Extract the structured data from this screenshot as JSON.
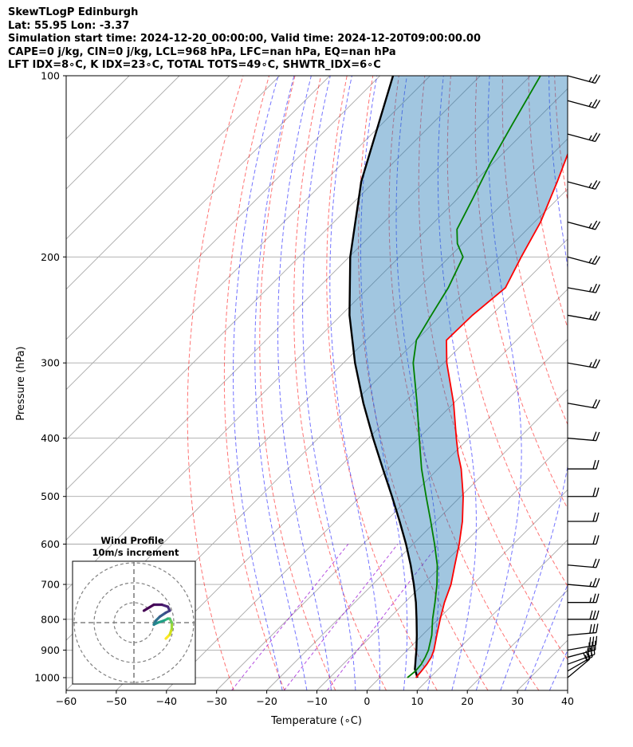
{
  "header": {
    "line1": "SkewTLogP Edinburgh",
    "line2": "Lat: 55.95   Lon: -3.37",
    "line3": "Simulation start time: 2024-12-20_00:00:00, Valid time: 2024-12-20T09:00:00.00",
    "line4": "CAPE=0 j/kg, CIN=0 j/kg, LCL=968 hPa, LFC=nan hPa, EQ=nan hPa",
    "line5": "LFT IDX=8∘C, K IDX=23∘C, TOTAL TOTS=49∘C, SHWTR_IDX=6∘C"
  },
  "chart_data": {
    "type": "line",
    "title": "SkewTLogP Edinburgh",
    "xlabel": "Temperature (∘C)",
    "ylabel": "Pressure (hPa)",
    "xlim": [
      -60,
      40
    ],
    "ylim": [
      1050,
      100
    ],
    "y_scale": "log",
    "grid": true,
    "x_ticks": [
      -60,
      -50,
      -40,
      -30,
      -20,
      -10,
      0,
      10,
      20,
      30,
      40
    ],
    "y_ticks": [
      1000,
      900,
      800,
      700,
      600,
      500,
      400,
      300,
      200,
      100
    ],
    "colors": {
      "temperature": "#ff0000",
      "dewpoint": "#008000",
      "parcel": "#000000",
      "cape_fill": "#1f77b4",
      "dry_adiabat": "#ff0000",
      "moist_adiabat": "#0000ff",
      "mixing_ratio": "#9400d3",
      "isotherm": "#808080"
    },
    "series": [
      {
        "name": "Temperature",
        "pressure": [
          1000,
          975,
          950,
          925,
          900,
          850,
          800,
          750,
          700,
          650,
          600,
          550,
          500,
          450,
          425,
          400,
          350,
          300,
          275,
          250,
          225,
          200,
          175,
          150,
          125,
          100
        ],
        "values": [
          7.2,
          7.0,
          6.7,
          6.2,
          5.3,
          2.9,
          0.4,
          -2.1,
          -4.4,
          -7.5,
          -10.8,
          -14.7,
          -19.5,
          -25.4,
          -29.0,
          -32.5,
          -40.0,
          -49.4,
          -54.0,
          -53.8,
          -52.7,
          -55.7,
          -58.8,
          -63.5,
          -69.4,
          -75.5
        ]
      },
      {
        "name": "Dewpoint",
        "pressure": [
          1000,
          975,
          950,
          925,
          900,
          850,
          800,
          750,
          700,
          650,
          600,
          550,
          500,
          450,
          400,
          350,
          300,
          275,
          250,
          225,
          200,
          190,
          180,
          160,
          140,
          120,
          100
        ],
        "values": [
          5.5,
          5.8,
          5.6,
          5.0,
          4.2,
          1.9,
          -1.1,
          -4.0,
          -7.2,
          -11.0,
          -15.7,
          -21.0,
          -26.9,
          -33.3,
          -39.9,
          -47.3,
          -56.1,
          -60.0,
          -62.0,
          -64.1,
          -67.3,
          -71.1,
          -74.0,
          -77.0,
          -80.5,
          -84.0,
          -88.0
        ]
      },
      {
        "name": "Parcel",
        "pressure": [
          1000,
          968,
          950,
          925,
          900,
          850,
          800,
          750,
          700,
          650,
          600,
          550,
          500,
          450,
          400,
          350,
          300,
          250,
          200,
          150,
          100
        ],
        "values": [
          7.5,
          5.3,
          4.4,
          3.1,
          1.8,
          -1.1,
          -4.3,
          -7.8,
          -11.8,
          -16.3,
          -21.4,
          -27.2,
          -33.7,
          -41.0,
          -49.1,
          -58.0,
          -67.7,
          -78.3,
          -89.8,
          -102.6,
          -117.4
        ]
      }
    ],
    "wind_barbs": {
      "pressure": [
        1000,
        975,
        950,
        925,
        900,
        850,
        800,
        750,
        700,
        650,
        600,
        550,
        500,
        450,
        400,
        350,
        300,
        250,
        225,
        200,
        175,
        150,
        125,
        110,
        100
      ],
      "speed_kt": [
        20,
        25,
        30,
        30,
        30,
        30,
        30,
        25,
        25,
        20,
        20,
        20,
        20,
        20,
        20,
        20,
        25,
        25,
        25,
        25,
        25,
        25,
        25,
        25,
        25
      ],
      "direction_deg": [
        230,
        240,
        250,
        255,
        260,
        265,
        270,
        270,
        275,
        275,
        270,
        270,
        270,
        270,
        275,
        280,
        280,
        280,
        280,
        285,
        285,
        285,
        285,
        285,
        285
      ]
    },
    "hodograph": {
      "title": "Wind Profile",
      "subtitle": "10m/s increment",
      "u": [
        16,
        18,
        19,
        19,
        18,
        17,
        15,
        12,
        10,
        11,
        13,
        16,
        18,
        17,
        14,
        10,
        5
      ],
      "v": [
        -8,
        -6,
        -3,
        0,
        2,
        2,
        1,
        0,
        -1,
        1,
        3,
        5,
        6,
        8,
        9,
        9,
        6
      ]
    }
  }
}
